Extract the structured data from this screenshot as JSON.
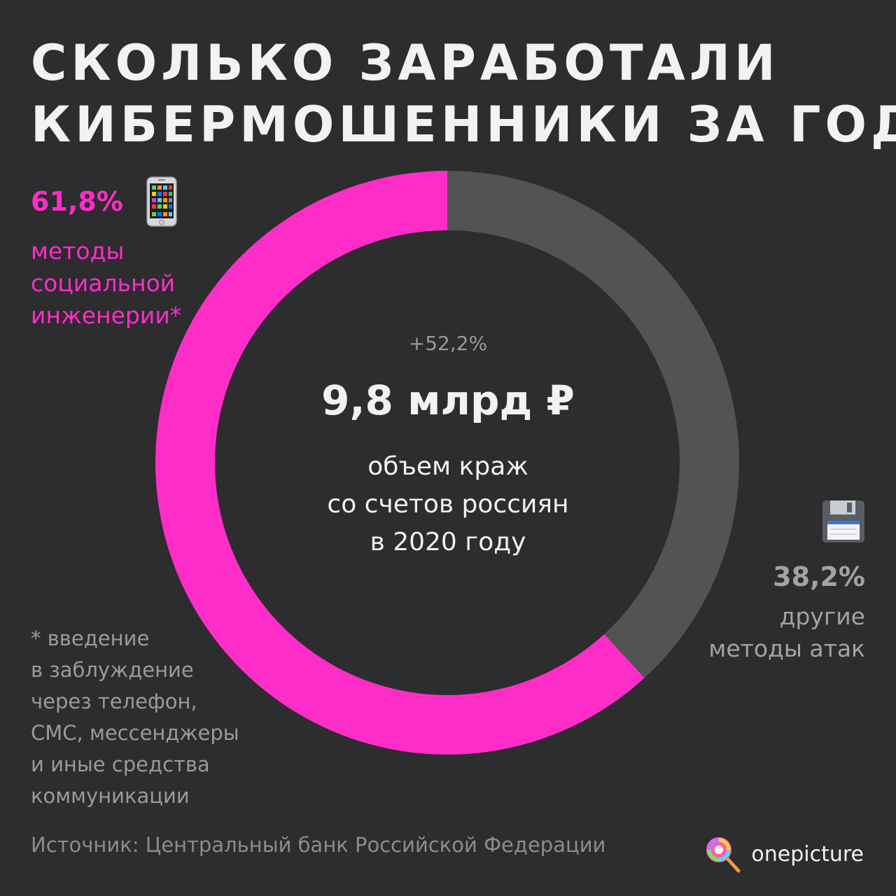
{
  "title": {
    "line1": "СКОЛЬКО ЗАРАБОТАЛИ",
    "line2": "КИБЕРМОШЕННИКИ ЗА ГОД"
  },
  "center": {
    "change": "+52,2%",
    "total": "9,8 млрд ₽",
    "line1": "объем краж",
    "line2": "со счетов россиян",
    "line3": "в 2020 году"
  },
  "left_label": {
    "pct": "61,8%",
    "line1": "методы",
    "line2": "социальной",
    "line3": "инженерии*",
    "icon": "mobile-phone-icon"
  },
  "right_label": {
    "pct": "38,2%",
    "line1": "другие",
    "line2": "методы атак",
    "icon": "floppy-disk-icon"
  },
  "footnote": {
    "line1": "* введение",
    "line2": "в заблуждение",
    "line3": "через телефон,",
    "line4": "СМС, мессенджеры",
    "line5": "и иные средства",
    "line6": "коммуникации"
  },
  "source": "Источник: Центральный банк Российской Федерации",
  "brand": {
    "name": "onepicture",
    "icon": "lollipop-icon"
  },
  "colors": {
    "background": "#2d2c2e",
    "accent": "#ff2dc8",
    "other": "#535353",
    "text": "#f2f2f2",
    "muted": "#9a9a9a"
  },
  "chart_data": {
    "type": "pie",
    "donut": true,
    "categories": [
      "методы социальной инженерии*",
      "другие методы атак"
    ],
    "values": [
      61.8,
      38.2
    ],
    "total_label": "9,8 млрд ₽",
    "change_label": "+52,2%"
  }
}
